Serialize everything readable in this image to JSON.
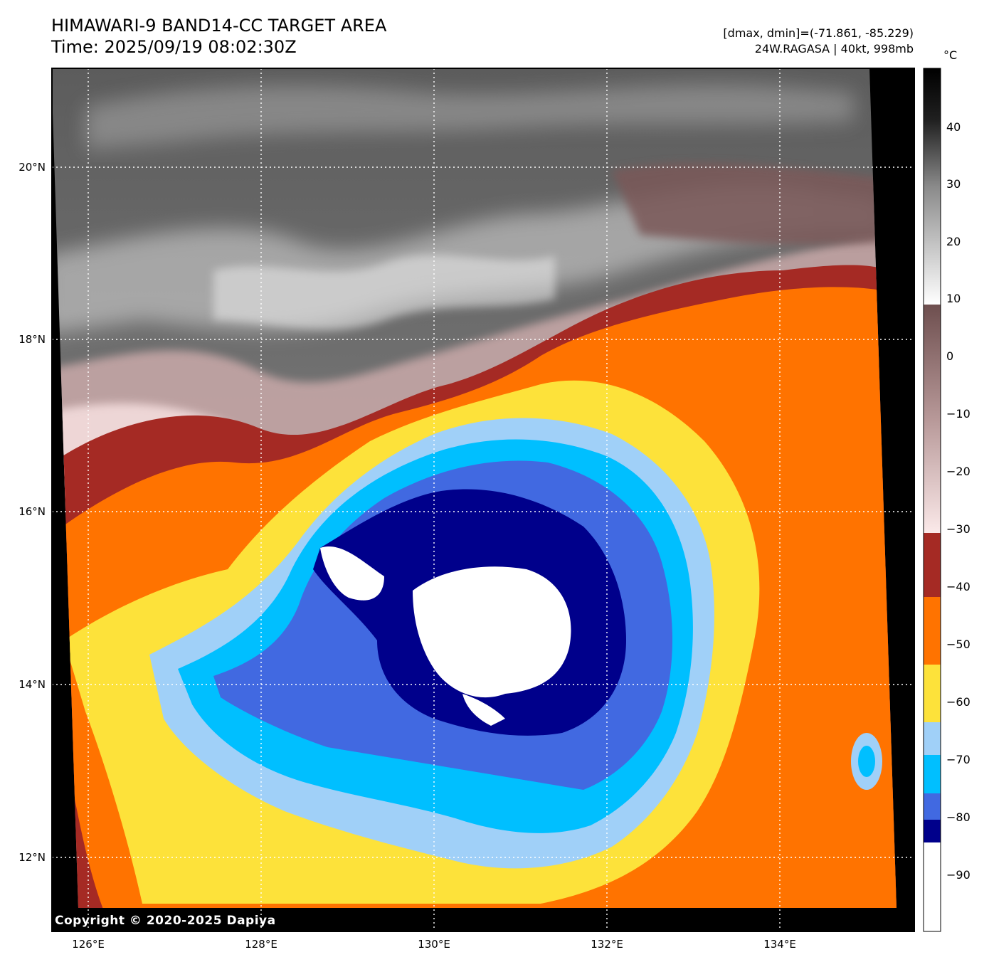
{
  "title_line1": "HIMAWARI-9 BAND14-CC TARGET AREA",
  "title_line2": "Time: 2025/09/19 08:02:30Z",
  "info_line1": "[dmax, dmin]=(-71.861, -85.229)",
  "info_line2": "24W.RAGASA | 40kt, 998mb",
  "colorbar_unit": "°C",
  "copyright": "Copyright © 2020-2025 Dapiya",
  "lat_labels": [
    "20°N",
    "18°N",
    "16°N",
    "14°N",
    "12°N"
  ],
  "lon_labels": [
    "126°E",
    "128°E",
    "130°E",
    "132°E",
    "134°E"
  ],
  "colorbar_ticks": [
    "40",
    "30",
    "20",
    "10",
    "0",
    "−10",
    "−20",
    "−30",
    "−40",
    "−50",
    "−60",
    "−70",
    "−80",
    "−90"
  ],
  "colorbar_range": [
    -100,
    50
  ],
  "colors": {
    "warm_clear": "#5a5a5a",
    "bright_gray": "#e8e8e8",
    "mauve": "#7a5858",
    "pink": "#f5dede",
    "dark_red": "#a52a24",
    "orange": "#ff7300",
    "yellow": "#fde23a",
    "light_blue": "#a0d0f8",
    "cyan": "#00bfff",
    "royal_blue": "#4169e1",
    "navy": "#00008b",
    "white": "#ffffff"
  },
  "chart_data": {
    "type": "heatmap",
    "lat_range": [
      11.5,
      21.2
    ],
    "lon_range": [
      125.5,
      135.5
    ],
    "value_unit": "°C",
    "storm_center_lat": 14.8,
    "storm_center_lon": 130.8,
    "dmax": -71.861,
    "dmin": -85.229
  }
}
